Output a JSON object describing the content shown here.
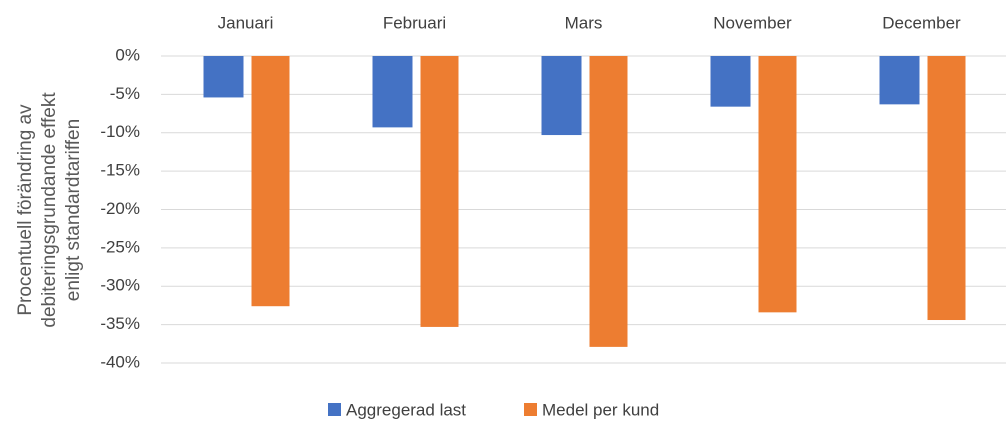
{
  "chart_data": {
    "type": "bar",
    "y_label": [
      "Procentuell förändring av",
      "debiteringsgrundande effekt",
      "enligt standardtariffen"
    ],
    "categories": [
      "Januari",
      "Februari",
      "Mars",
      "November",
      "December"
    ],
    "series": [
      {
        "name": "Aggregerad last",
        "color": "#4472c4",
        "values": [
          -5.4,
          -9.3,
          -10.3,
          -6.6,
          -6.3
        ]
      },
      {
        "name": "Medel per kund",
        "color": "#ed7d31",
        "values": [
          -32.6,
          -35.3,
          -37.9,
          -33.4,
          -34.4
        ]
      }
    ],
    "ylim": [
      -40,
      0
    ],
    "yticks": [
      {
        "value": 0,
        "label": "0%"
      },
      {
        "value": -5,
        "label": "-5%"
      },
      {
        "value": -10,
        "label": "-10%"
      },
      {
        "value": -15,
        "label": "-15%"
      },
      {
        "value": -20,
        "label": "-20%"
      },
      {
        "value": -25,
        "label": "-25%"
      },
      {
        "value": -30,
        "label": "-30%"
      },
      {
        "value": -35,
        "label": "-35%"
      },
      {
        "value": -40,
        "label": "-40%"
      }
    ],
    "grid": true,
    "legend": "bottom"
  }
}
